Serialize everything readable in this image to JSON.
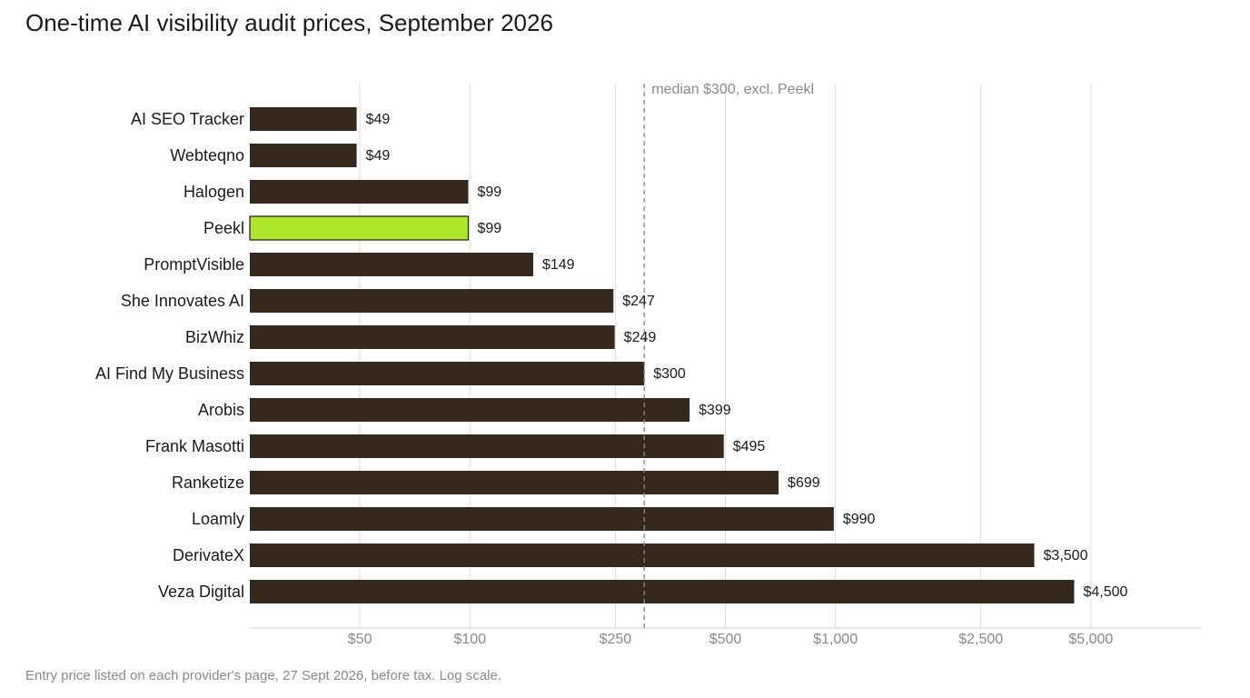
{
  "title": "One-time AI visibility audit prices, September 2026",
  "footnote": "Entry price listed on each provider's page, 27 Sept 2026, before tax. Log scale.",
  "chart_data": {
    "type": "bar",
    "orientation": "horizontal",
    "title": "One-time AI visibility audit prices, September 2026",
    "xlabel": "",
    "ylabel": "",
    "xscale": "log",
    "xlim": [
      25,
      10000
    ],
    "grid": "vertical",
    "categories": [
      "AI SEO Tracker",
      "Webteqno",
      "Halogen",
      "Peekl",
      "PromptVisible",
      "She Innovates AI",
      "BizWhiz",
      "AI Find My Business",
      "Arobis",
      "Frank Masotti",
      "Ranketize",
      "Loamly",
      "DerivateX",
      "Veza Digital"
    ],
    "values": [
      49,
      49,
      99,
      99,
      149,
      247,
      249,
      300,
      399,
      495,
      699,
      990,
      3500,
      4500
    ],
    "value_labels": [
      "$49",
      "$49",
      "$99",
      "$99",
      "$149",
      "$247",
      "$249",
      "$300",
      "$399",
      "$495",
      "$699",
      "$990",
      "$3,500",
      "$4,500"
    ],
    "highlight": "Peekl",
    "ticks": [
      50,
      100,
      250,
      500,
      1000,
      2500,
      5000
    ],
    "tick_labels": [
      "$50",
      "$100",
      "$250",
      "$500",
      "$1,000",
      "$2,500",
      "$5,000"
    ],
    "reference_line": {
      "value": 300,
      "label": "median $300, excl. Peekl"
    },
    "colors": {
      "bar": "#35281d",
      "highlight": "#aee62a",
      "highlight_stroke": "#1a1a1a",
      "grid": "#dddddd",
      "axis": "#cccccc",
      "reference": "#888888"
    }
  }
}
